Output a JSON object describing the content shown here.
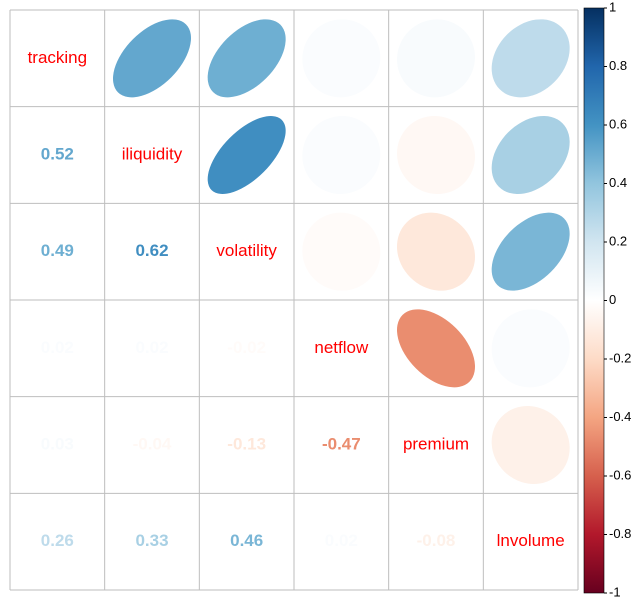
{
  "chart_data": {
    "type": "corrplot",
    "variables": [
      "tracking",
      "iliquidity",
      "volatility",
      "netflow",
      "premium",
      "lnvolume"
    ],
    "matrix": [
      [
        0.52
      ],
      [
        0.49,
        0.62
      ],
      [
        0.02,
        0.02,
        -0.02
      ],
      [
        0.03,
        -0.04,
        -0.13,
        -0.47
      ],
      [
        0.26,
        0.33,
        0.46,
        0.02,
        -0.08
      ]
    ],
    "colors": [
      "#67001F",
      "#B2182B",
      "#D6604D",
      "#F4A582",
      "#FDDBC7",
      "#FFFFFF",
      "#D1E5F0",
      "#92C5DE",
      "#4393C3",
      "#2166AC",
      "#053061"
    ],
    "ylim": [
      -1,
      1
    ],
    "yticks": [
      -1,
      -0.8,
      -0.6,
      -0.4,
      -0.2,
      0,
      0.2,
      0.4,
      0.6,
      0.8,
      1
    ]
  }
}
